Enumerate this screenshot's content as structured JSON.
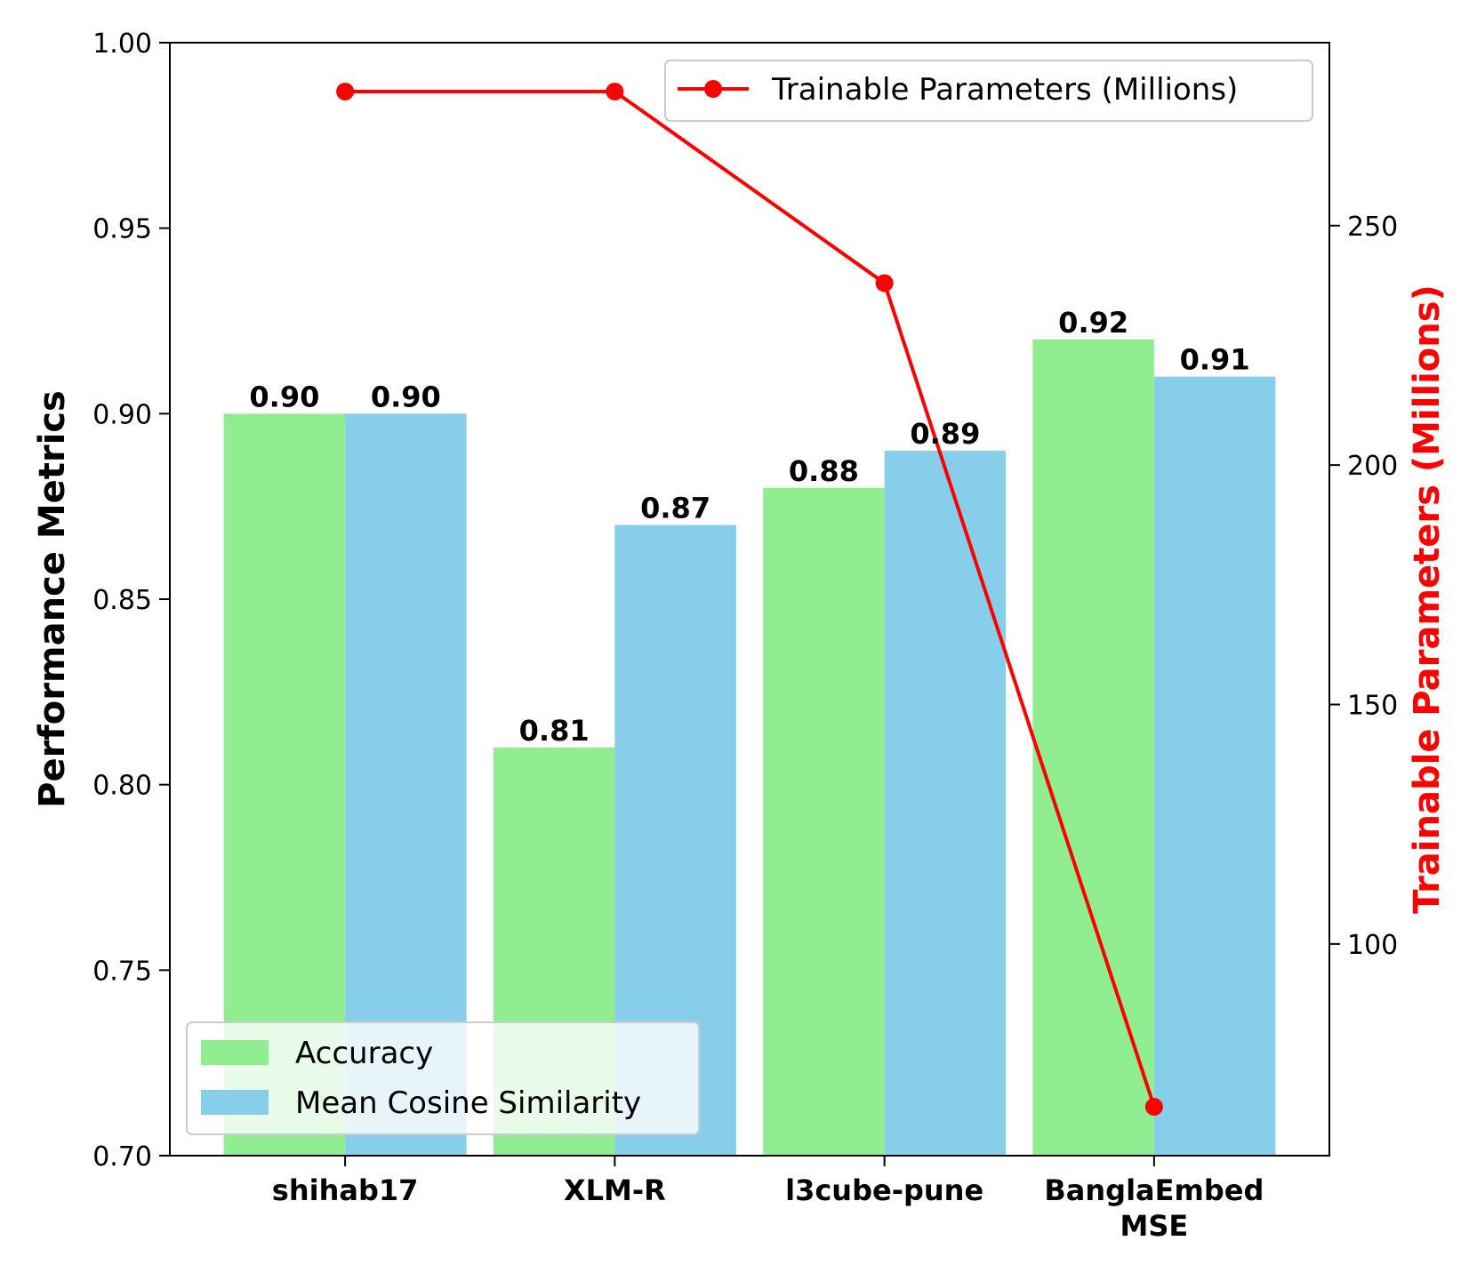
{
  "chart_data": {
    "type": "bar",
    "categories": [
      "shihab17",
      "XLM-R",
      "l3cube-pune",
      "BanglaEmbed MSE"
    ],
    "category_lines": [
      [
        "shihab17"
      ],
      [
        "XLM-R"
      ],
      [
        "l3cube-pune"
      ],
      [
        "BanglaEmbed",
        "MSE"
      ]
    ],
    "series": [
      {
        "name": "Accuracy",
        "values": [
          0.9,
          0.81,
          0.88,
          0.92
        ],
        "color": "#90EE90",
        "axis": "left",
        "labels": [
          "0.90",
          "0.81",
          "0.88",
          "0.92"
        ]
      },
      {
        "name": "Mean Cosine Similarity",
        "values": [
          0.9,
          0.87,
          0.89,
          0.91
        ],
        "color": "#87CEEB",
        "axis": "left",
        "labels": [
          "0.90",
          "0.87",
          "0.89",
          "0.91"
        ]
      }
    ],
    "line_series": {
      "name": "Trainable Parameters (Millions)",
      "type": "line",
      "values": [
        278,
        278,
        238,
        66
      ],
      "color": "#FF0000",
      "axis": "right"
    },
    "ylabel": "Performance Metrics",
    "ylim": [
      0.7,
      1.0
    ],
    "yticks": [
      0.7,
      0.75,
      0.8,
      0.85,
      0.9,
      0.95,
      1.0
    ],
    "ytick_labels": [
      "0.70",
      "0.75",
      "0.80",
      "0.85",
      "0.90",
      "0.95",
      "1.00"
    ],
    "y2label": "Trainable Parameters (Millions)",
    "y2label_color": "#FF0000",
    "y2lim": [
      55.8,
      288.2
    ],
    "y2ticks": [
      100,
      150,
      200,
      250
    ],
    "y2tick_labels": [
      "100",
      "150",
      "200",
      "250"
    ],
    "legend_bars": "lower-left",
    "legend_line": "upper-right",
    "grid": false
  }
}
